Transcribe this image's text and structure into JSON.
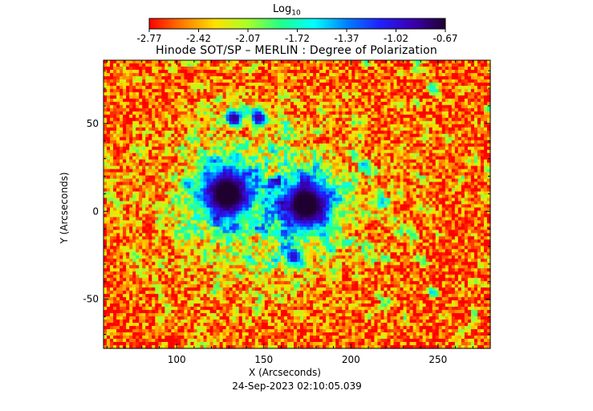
{
  "colorbar": {
    "title": "Log",
    "title_subscript": "10",
    "ticks": [
      "-2.77",
      "-2.42",
      "-2.07",
      "-1.72",
      "-1.37",
      "-1.02",
      "-0.67"
    ],
    "colormap": [
      "#ff0000",
      "#ff7a00",
      "#ffe000",
      "#a8ff2a",
      "#22ff88",
      "#00ffff",
      "#0080ff",
      "#2020ff",
      "#3a00b0",
      "#200030"
    ]
  },
  "title": "Hinode SOT/SP – MERLIN : Degree of Polarization",
  "xlabel": "X (Arcseconds)",
  "ylabel": "Y (Arcseconds)",
  "timestamp": "24-Sep-2023 02:10:05.039",
  "chart_data": {
    "type": "heatmap",
    "title": "Hinode SOT/SP – MERLIN : Degree of Polarization",
    "xlabel": "X (Arcseconds)",
    "ylabel": "Y (Arcseconds)",
    "xlim": [
      58,
      280
    ],
    "ylim": [
      -78,
      86
    ],
    "xticks": [
      100,
      150,
      200,
      250
    ],
    "yticks": [
      -50,
      0,
      50
    ],
    "colorbar_label": "Log10",
    "color_range": [
      -2.77,
      -0.67
    ],
    "features": [
      {
        "name": "sunspot umbra",
        "x": 129,
        "y": 10,
        "value": -0.67
      },
      {
        "name": "sunspot umbra",
        "x": 174,
        "y": 4,
        "value": -0.67
      },
      {
        "name": "pore",
        "x": 133,
        "y": 53,
        "value": -0.85
      },
      {
        "name": "pore",
        "x": 147,
        "y": 53,
        "value": -0.9
      },
      {
        "name": "pore",
        "x": 167,
        "y": -26,
        "value": -1.0
      }
    ],
    "background_value": -2.6
  }
}
